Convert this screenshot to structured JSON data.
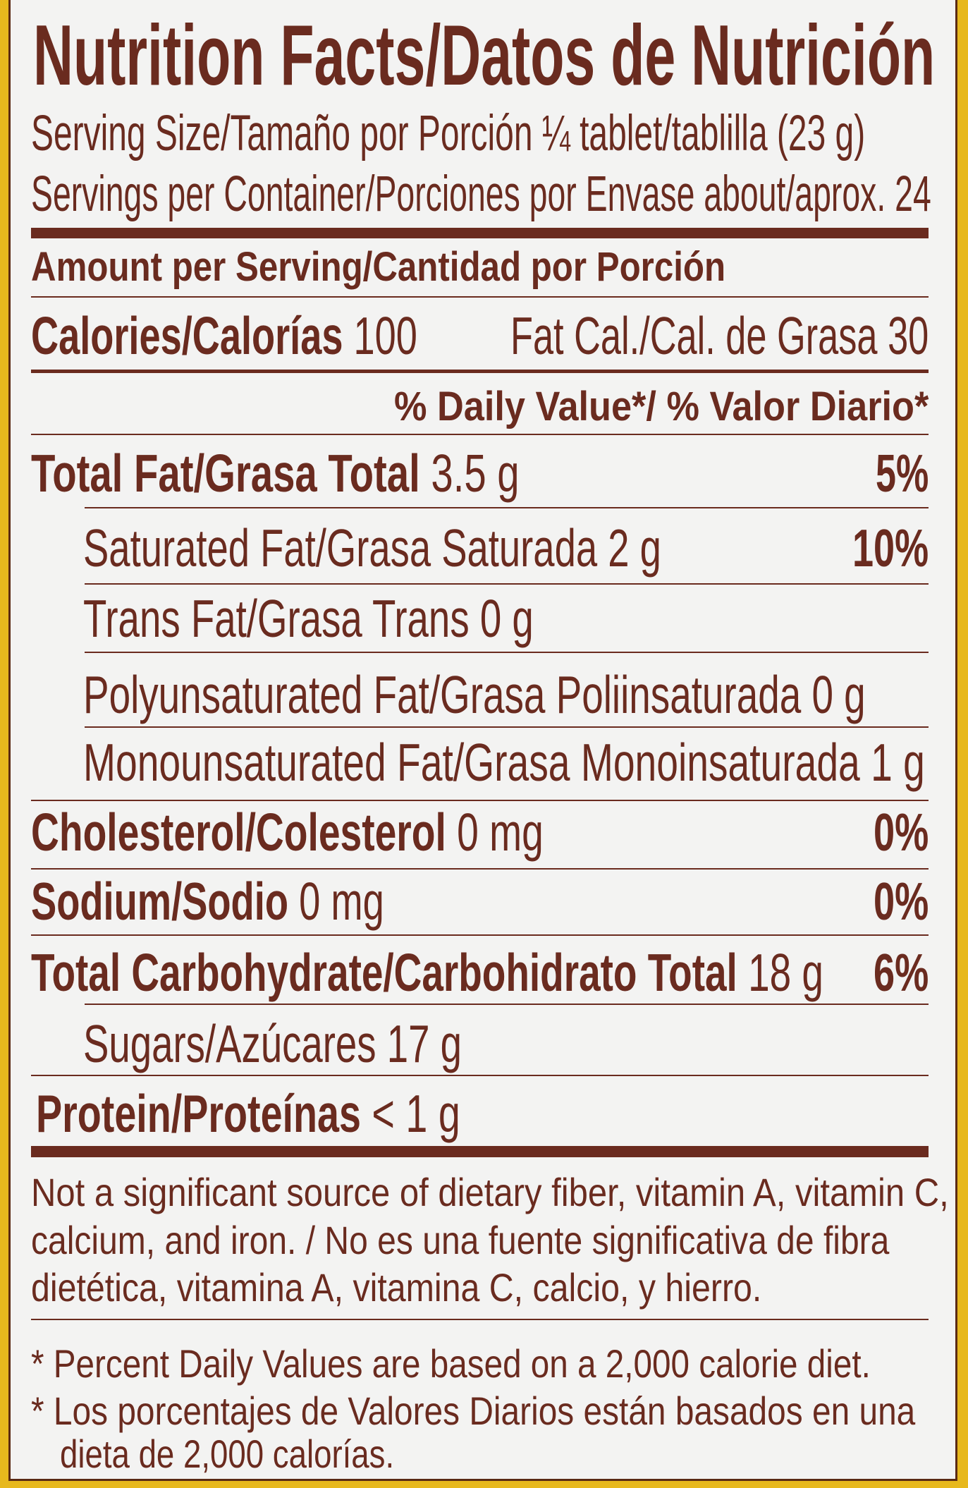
{
  "colors": {
    "text": "#6a2b1f",
    "panel": "#f3f3f2",
    "package_yellow": "#e7b81d"
  },
  "title": "Nutrition Facts/Datos de Nutrición",
  "serving_size": "Serving Size/Tamaño por Porción ¼ tablet/tablilla (23 g)",
  "servings_per_container": "Servings per Container/Porciones por Envase about/aprox. 24",
  "amount_per_serving": "Amount per Serving/Cantidad por Porción",
  "calories": {
    "label": "Calories/Calorías",
    "value": "100"
  },
  "fat_calories": "Fat Cal./Cal. de Grasa 30",
  "daily_value_header": "% Daily Value*/ % Valor Diario*",
  "nutrients": {
    "total_fat": {
      "label": "Total Fat/Grasa Total",
      "amount": "3.5 g",
      "dv": "5%"
    },
    "saturated_fat": {
      "label": "Saturated Fat/Grasa Saturada",
      "amount": "2 g",
      "dv": "10%"
    },
    "trans_fat": {
      "label": "Trans Fat/Grasa Trans",
      "amount": "0 g"
    },
    "polyunsaturated_fat": {
      "label": "Polyunsaturated Fat/Grasa Poliinsaturada",
      "amount": "0 g"
    },
    "monounsaturated_fat": {
      "label": "Monounsaturated Fat/Grasa Monoinsaturada",
      "amount": "1 g"
    },
    "cholesterol": {
      "label": "Cholesterol/Colesterol",
      "amount": "0 mg",
      "dv": "0%"
    },
    "sodium": {
      "label": "Sodium/Sodio",
      "amount": "0 mg",
      "dv": "0%"
    },
    "total_carbohydrate": {
      "label": "Total Carbohydrate/Carbohidrato Total",
      "amount": "18 g",
      "dv": "6%"
    },
    "sugars": {
      "label": "Sugars/Azúcares",
      "amount": "17 g"
    },
    "protein": {
      "label": "Protein/Proteínas",
      "amount": "< 1 g"
    }
  },
  "not_significant_note": [
    "Not a significant source of dietary fiber, vitamin A, vitamin C,",
    "calcium, and iron. / No es una fuente significativa de fibra",
    "dietética, vitamina A, vitamina C, calcio, y hierro."
  ],
  "footnote": [
    "* Percent Daily Values are based on a 2,000 calorie diet.",
    "* Los porcentajes de Valores Diarios están basados en una",
    "dieta de 2,000 calorías."
  ]
}
